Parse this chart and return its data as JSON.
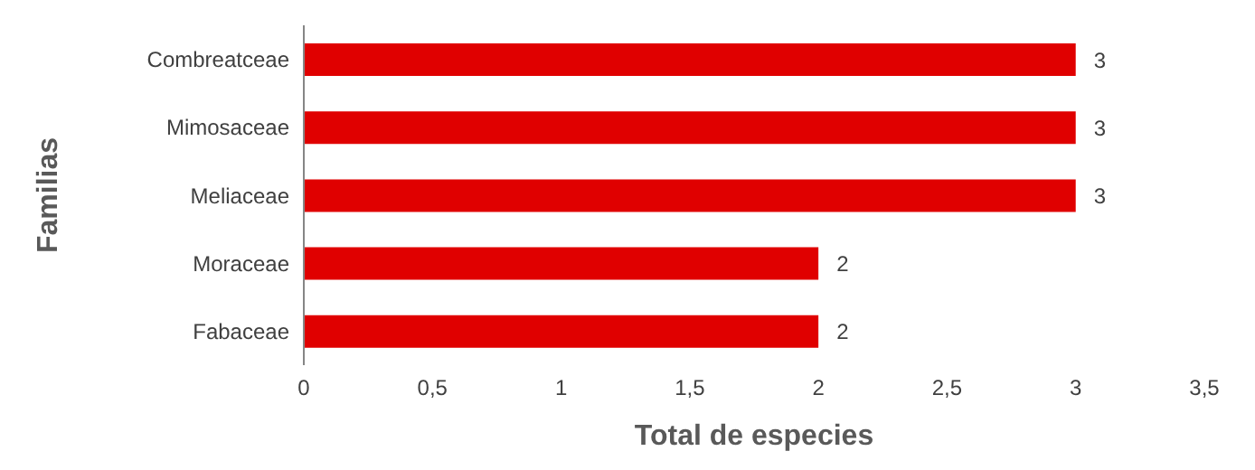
{
  "chart_data": {
    "type": "bar",
    "orientation": "horizontal",
    "xlabel": "Total de especies",
    "ylabel": "Familias",
    "categories": [
      "Combreatceae",
      "Mimosaceae",
      "Meliaceae",
      "Moraceae",
      "Fabaceae"
    ],
    "values": [
      3,
      3,
      3,
      2,
      2
    ],
    "color": "#e00000",
    "xlim": [
      0,
      3.5
    ],
    "xticks": [
      0,
      {
        "value": 0.5,
        "label": "0,5"
      },
      1,
      {
        "value": 1.5,
        "label": "1,5"
      },
      2,
      {
        "value": 2.5,
        "label": "2,5"
      },
      3,
      {
        "value": 3.5,
        "label": "3,5"
      }
    ],
    "grid": false,
    "data_labels": true
  }
}
